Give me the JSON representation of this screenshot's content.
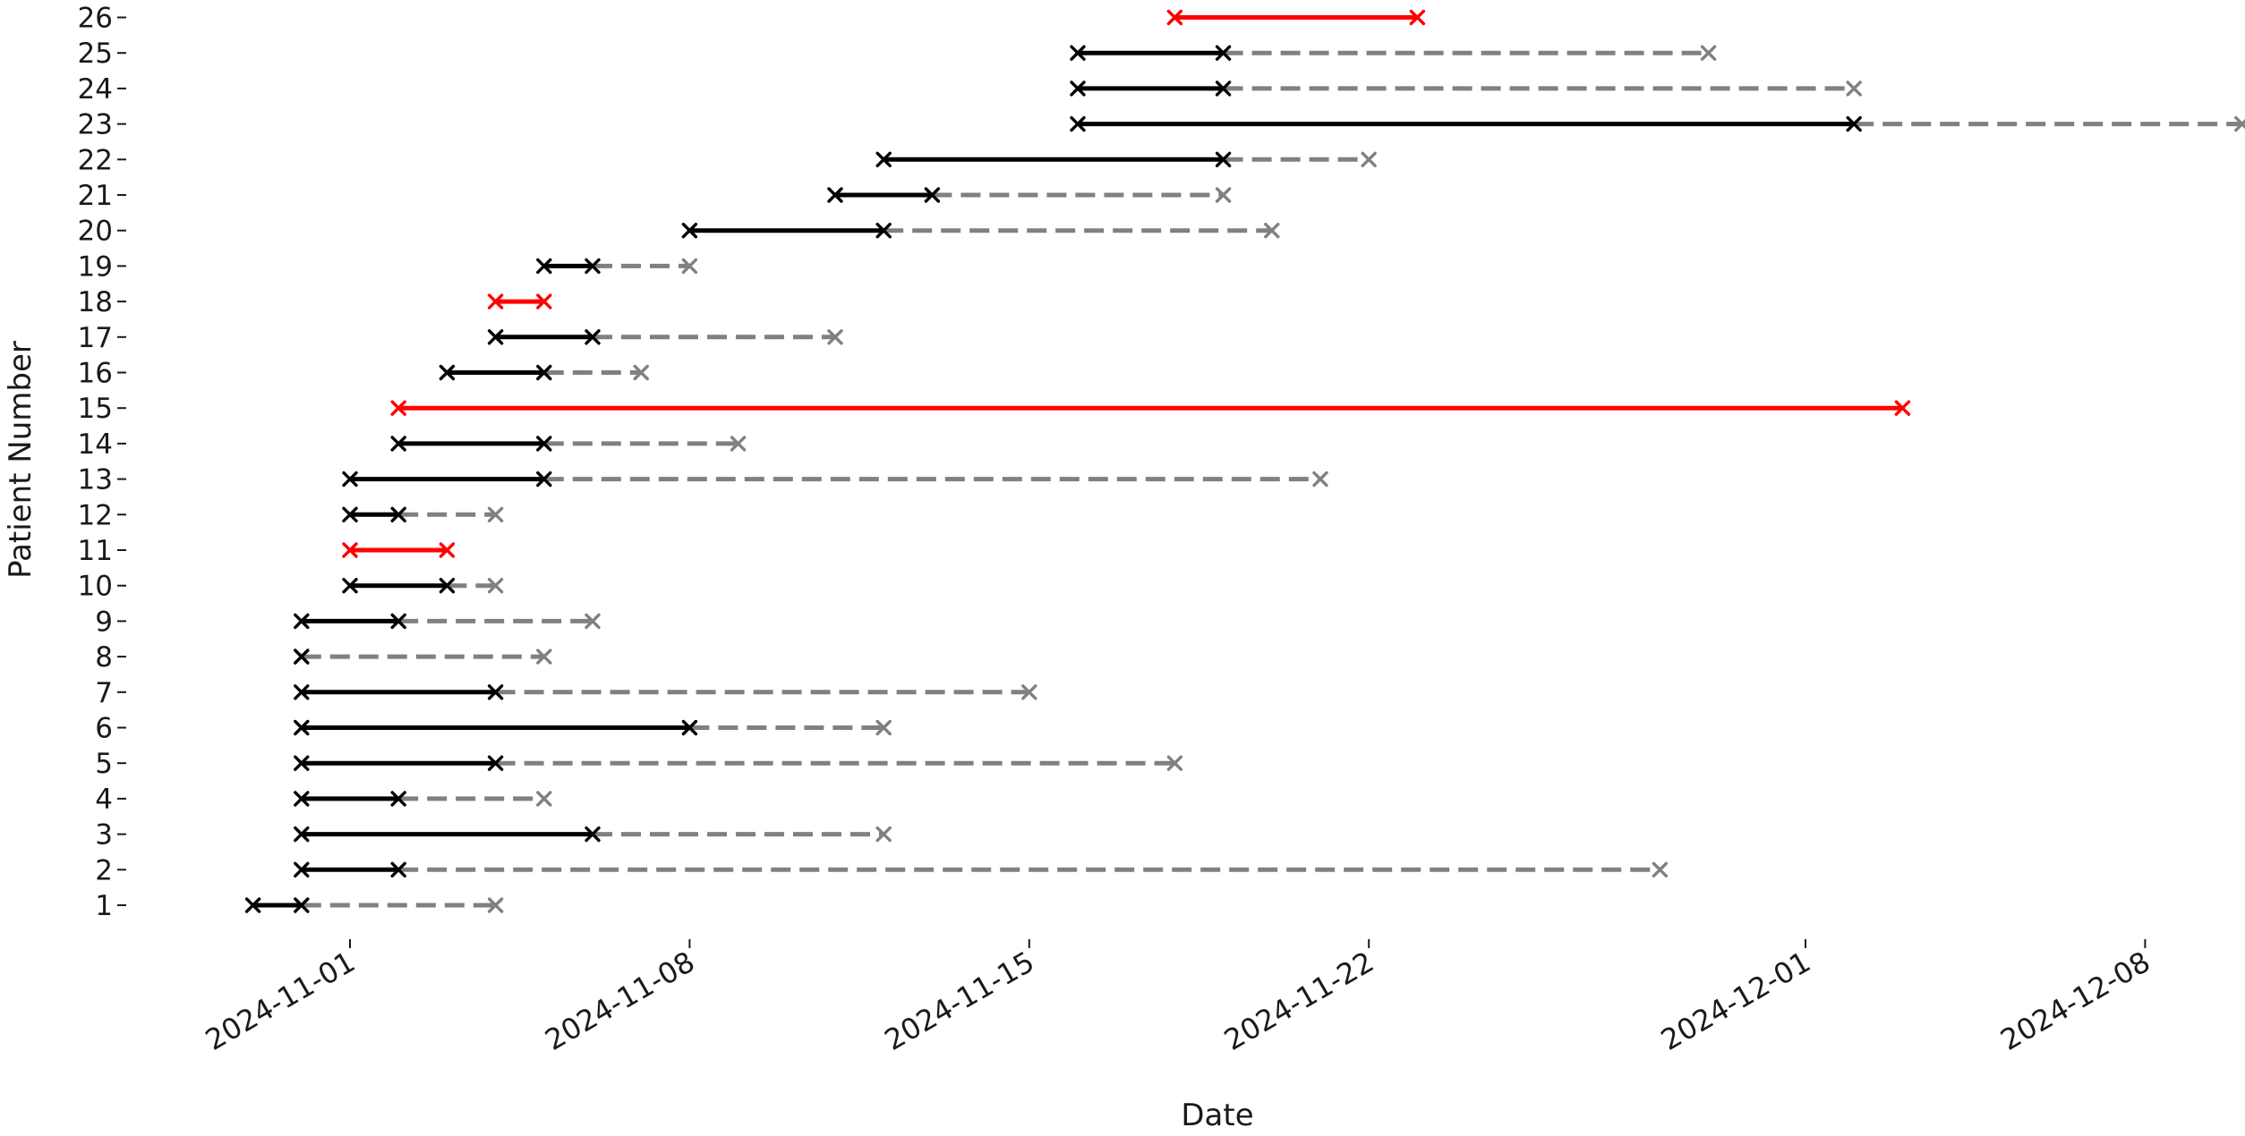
{
  "chart_data": {
    "type": "timeline",
    "title": "",
    "xlabel": "Date",
    "ylabel": "Patient Number",
    "x_range": [
      "2024-10-28",
      "2024-12-10"
    ],
    "x_ticks": [
      "2024-11-01",
      "2024-11-08",
      "2024-11-15",
      "2024-11-22",
      "2024-12-01",
      "2024-12-08"
    ],
    "y_ticks": [
      1,
      2,
      3,
      4,
      5,
      6,
      7,
      8,
      9,
      10,
      11,
      12,
      13,
      14,
      15,
      16,
      17,
      18,
      19,
      20,
      21,
      22,
      23,
      24,
      25,
      26
    ],
    "grid": false,
    "colors": {
      "solid_default": "#000000",
      "solid_highlight": "#ff0000",
      "dashed": "#808080",
      "text": "#1a1a1a"
    },
    "patients": [
      {
        "patient": 1,
        "start": "2024-10-30",
        "solid_end": "2024-10-31",
        "dashed_end": "2024-11-04",
        "solid_color": "black"
      },
      {
        "patient": 2,
        "start": "2024-10-31",
        "solid_end": "2024-11-02",
        "dashed_end": "2024-11-28",
        "solid_color": "black"
      },
      {
        "patient": 3,
        "start": "2024-10-31",
        "solid_end": "2024-11-06",
        "dashed_end": "2024-11-12",
        "solid_color": "black"
      },
      {
        "patient": 4,
        "start": "2024-10-31",
        "solid_end": "2024-11-02",
        "dashed_end": "2024-11-05",
        "solid_color": "black"
      },
      {
        "patient": 5,
        "start": "2024-10-31",
        "solid_end": "2024-11-04",
        "dashed_end": "2024-11-18",
        "solid_color": "black"
      },
      {
        "patient": 6,
        "start": "2024-10-31",
        "solid_end": "2024-11-08",
        "dashed_end": "2024-11-12",
        "solid_color": "black"
      },
      {
        "patient": 7,
        "start": "2024-10-31",
        "solid_end": "2024-11-04",
        "dashed_end": "2024-11-15",
        "solid_color": "black"
      },
      {
        "patient": 8,
        "start": "2024-10-31",
        "solid_end": "2024-10-31",
        "dashed_end": "2024-11-05",
        "solid_color": "black"
      },
      {
        "patient": 9,
        "start": "2024-10-31",
        "solid_end": "2024-11-02",
        "dashed_end": "2024-11-06",
        "solid_color": "black"
      },
      {
        "patient": 10,
        "start": "2024-11-01",
        "solid_end": "2024-11-03",
        "dashed_end": "2024-11-04",
        "solid_color": "black"
      },
      {
        "patient": 11,
        "start": "2024-11-01",
        "solid_end": "2024-11-03",
        "dashed_end": null,
        "solid_color": "red"
      },
      {
        "patient": 12,
        "start": "2024-11-01",
        "solid_end": "2024-11-02",
        "dashed_end": "2024-11-04",
        "solid_color": "black"
      },
      {
        "patient": 13,
        "start": "2024-11-01",
        "solid_end": "2024-11-05",
        "dashed_end": "2024-11-21",
        "solid_color": "black"
      },
      {
        "patient": 14,
        "start": "2024-11-02",
        "solid_end": "2024-11-05",
        "dashed_end": "2024-11-09",
        "solid_color": "black"
      },
      {
        "patient": 15,
        "start": "2024-11-02",
        "solid_end": "2024-12-03",
        "dashed_end": null,
        "solid_color": "red"
      },
      {
        "patient": 16,
        "start": "2024-11-03",
        "solid_end": "2024-11-05",
        "dashed_end": "2024-11-07",
        "solid_color": "black"
      },
      {
        "patient": 17,
        "start": "2024-11-04",
        "solid_end": "2024-11-06",
        "dashed_end": "2024-11-11",
        "solid_color": "black"
      },
      {
        "patient": 18,
        "start": "2024-11-04",
        "solid_end": "2024-11-05",
        "dashed_end": null,
        "solid_color": "red"
      },
      {
        "patient": 19,
        "start": "2024-11-05",
        "solid_end": "2024-11-06",
        "dashed_end": "2024-11-08",
        "solid_color": "black"
      },
      {
        "patient": 20,
        "start": "2024-11-08",
        "solid_end": "2024-11-12",
        "dashed_end": "2024-11-20",
        "solid_color": "black"
      },
      {
        "patient": 21,
        "start": "2024-11-11",
        "solid_end": "2024-11-13",
        "dashed_end": "2024-11-19",
        "solid_color": "black"
      },
      {
        "patient": 22,
        "start": "2024-11-12",
        "solid_end": "2024-11-19",
        "dashed_end": "2024-11-22",
        "solid_color": "black"
      },
      {
        "patient": 23,
        "start": "2024-11-16",
        "solid_end": "2024-12-02",
        "dashed_end": "2024-12-10",
        "solid_color": "black"
      },
      {
        "patient": 24,
        "start": "2024-11-16",
        "solid_end": "2024-11-19",
        "dashed_end": "2024-12-02",
        "solid_color": "black"
      },
      {
        "patient": 25,
        "start": "2024-11-16",
        "solid_end": "2024-11-19",
        "dashed_end": "2024-11-29",
        "solid_color": "black"
      },
      {
        "patient": 26,
        "start": "2024-11-18",
        "solid_end": "2024-11-23",
        "dashed_end": null,
        "solid_color": "red"
      }
    ]
  }
}
